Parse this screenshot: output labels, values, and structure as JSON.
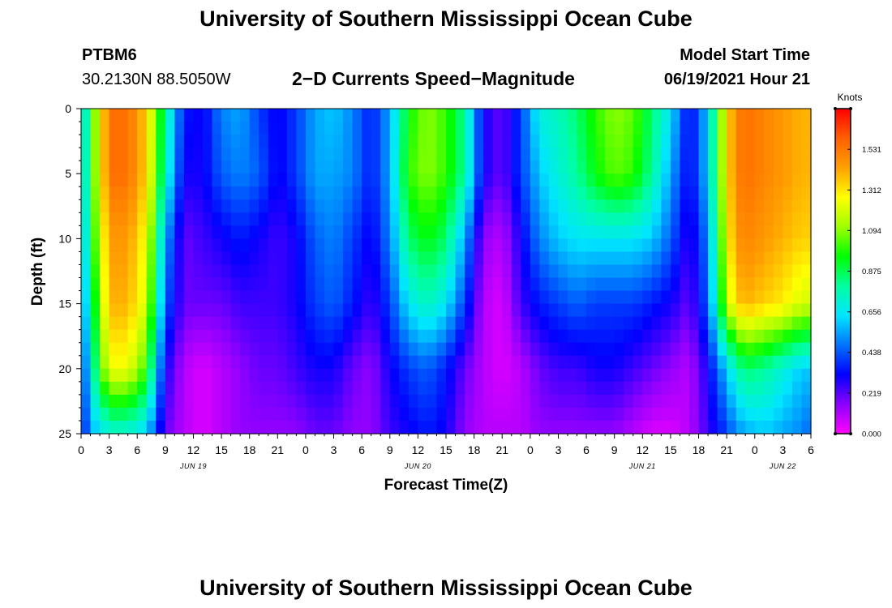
{
  "header": {
    "title": "University of Southern Mississippi Ocean Cube",
    "footer_title": "University of Southern Mississippi Ocean Cube",
    "station_id": "PTBM6",
    "coordinates": "30.2130N  88.5050W",
    "plot_title": "2−D Currents Speed−Magnitude",
    "model_start_label": "Model Start Time",
    "model_start_value": "06/19/2021 Hour 21"
  },
  "chart_data": {
    "type": "heatmap",
    "title": "2−D Currents Speed−Magnitude",
    "xlabel": "Forecast Time(Z)",
    "ylabel": "Depth (ft)",
    "x_range_hours": [
      0,
      78
    ],
    "y_range": [
      0,
      25
    ],
    "y_reversed": true,
    "y_ticks": [
      0,
      5,
      10,
      15,
      20,
      25
    ],
    "x_tick_labels": [
      "0",
      "3",
      "6",
      "9",
      "12",
      "15",
      "18",
      "21",
      "0",
      "3",
      "6",
      "9",
      "12",
      "15",
      "18",
      "21",
      "0",
      "3",
      "6",
      "9",
      "12",
      "15",
      "18",
      "21",
      "0",
      "3",
      "6"
    ],
    "date_labels": [
      {
        "hour": 12,
        "label": "JUN 19"
      },
      {
        "hour": 36,
        "label": "JUN 20"
      },
      {
        "hour": 60,
        "label": "JUN 21"
      },
      {
        "hour": 75,
        "label": "JUN 22"
      }
    ],
    "depths": [
      0,
      5,
      10,
      15,
      20,
      25
    ],
    "hours": [
      0,
      1,
      3,
      5,
      7,
      9,
      11,
      13,
      15,
      17,
      19,
      21,
      23,
      25,
      27,
      29,
      31,
      33,
      35,
      37,
      39,
      41,
      43,
      45,
      47,
      49,
      51,
      53,
      55,
      57,
      59,
      61,
      63,
      65,
      67,
      69,
      70,
      71,
      73,
      75,
      77,
      78
    ],
    "values": [
      [
        0.55,
        0.95,
        1.55,
        1.55,
        1.35,
        0.8,
        0.35,
        0.3,
        0.5,
        0.55,
        0.4,
        0.3,
        0.4,
        0.55,
        0.6,
        0.5,
        0.35,
        0.55,
        0.95,
        1.1,
        1.0,
        0.8,
        0.3,
        0.2,
        0.4,
        0.7,
        0.75,
        0.85,
        1.0,
        1.1,
        1.05,
        0.85,
        0.65,
        0.3,
        0.6,
        1.3,
        1.5,
        1.55,
        1.5,
        1.45,
        1.4,
        1.4
      ],
      [
        0.55,
        0.95,
        1.55,
        1.55,
        1.35,
        0.75,
        0.3,
        0.3,
        0.45,
        0.5,
        0.45,
        0.3,
        0.4,
        0.55,
        0.55,
        0.5,
        0.35,
        0.55,
        1.0,
        1.1,
        1.0,
        0.8,
        0.3,
        0.2,
        0.4,
        0.6,
        0.7,
        0.8,
        0.95,
        1.05,
        1.0,
        0.8,
        0.55,
        0.3,
        0.6,
        1.3,
        1.5,
        1.55,
        1.5,
        1.45,
        1.4,
        1.4
      ],
      [
        0.5,
        0.9,
        1.45,
        1.45,
        1.25,
        0.55,
        0.2,
        0.25,
        0.3,
        0.35,
        0.3,
        0.25,
        0.3,
        0.45,
        0.5,
        0.4,
        0.3,
        0.5,
        0.85,
        0.95,
        0.85,
        0.55,
        0.15,
        0.1,
        0.3,
        0.5,
        0.6,
        0.65,
        0.65,
        0.65,
        0.65,
        0.6,
        0.45,
        0.25,
        0.5,
        1.25,
        1.45,
        1.5,
        1.45,
        1.4,
        1.35,
        1.35
      ],
      [
        0.45,
        0.8,
        1.4,
        1.4,
        1.2,
        0.45,
        0.2,
        0.2,
        0.2,
        0.25,
        0.25,
        0.25,
        0.3,
        0.4,
        0.45,
        0.35,
        0.25,
        0.4,
        0.65,
        0.75,
        0.65,
        0.4,
        0.1,
        0.05,
        0.25,
        0.35,
        0.4,
        0.45,
        0.4,
        0.4,
        0.4,
        0.35,
        0.3,
        0.2,
        0.45,
        1.15,
        1.35,
        1.4,
        1.35,
        1.3,
        1.2,
        1.2
      ],
      [
        0.35,
        0.7,
        1.25,
        1.25,
        1.0,
        0.3,
        0.1,
        0.05,
        0.1,
        0.15,
        0.2,
        0.2,
        0.25,
        0.3,
        0.3,
        0.2,
        0.15,
        0.3,
        0.4,
        0.45,
        0.35,
        0.2,
        0.1,
        0.05,
        0.1,
        0.2,
        0.25,
        0.25,
        0.3,
        0.3,
        0.25,
        0.2,
        0.15,
        0.1,
        0.3,
        0.6,
        0.75,
        0.85,
        0.8,
        0.7,
        0.6,
        0.6
      ],
      [
        0.3,
        0.55,
        0.7,
        0.7,
        0.6,
        0.2,
        0.1,
        0.05,
        0.1,
        0.15,
        0.15,
        0.15,
        0.15,
        0.2,
        0.2,
        0.15,
        0.15,
        0.25,
        0.3,
        0.35,
        0.3,
        0.15,
        0.1,
        0.1,
        0.1,
        0.15,
        0.15,
        0.15,
        0.15,
        0.15,
        0.1,
        0.05,
        0.05,
        0.1,
        0.25,
        0.4,
        0.5,
        0.55,
        0.6,
        0.55,
        0.5,
        0.45
      ]
    ],
    "colorbar": {
      "unit": "Knots",
      "min": 0,
      "max": 1.75,
      "ticks": [
        "0.000",
        "0.219",
        "0.438",
        "0.656",
        "0.875",
        "1.094",
        "1.312",
        "1.531"
      ],
      "colors": [
        "#ff00ff",
        "#8c00ff",
        "#0000ff",
        "#0073ff",
        "#00e6ff",
        "#00ffa0",
        "#00ff00",
        "#a0ff00",
        "#ffff00",
        "#ffa000",
        "#ff6000",
        "#ff0000"
      ]
    }
  }
}
